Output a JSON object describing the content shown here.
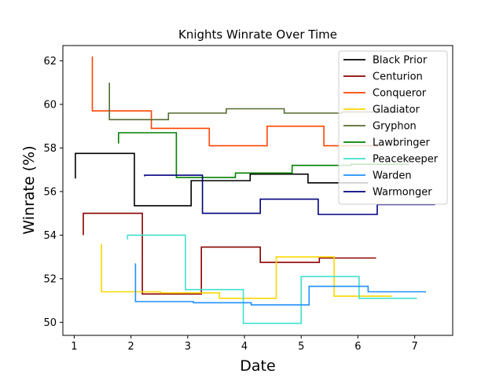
{
  "chart_data": {
    "type": "line",
    "step": true,
    "title": "Knights Winrate Over Time",
    "xlabel": "Date",
    "ylabel": "Winrate (%)",
    "xlim": [
      0.8,
      7.67
    ],
    "ylim": [
      49.4,
      62.7
    ],
    "xticks": [
      1,
      2,
      3,
      4,
      5,
      6,
      7
    ],
    "yticks": [
      50,
      52,
      54,
      56,
      58,
      60,
      62
    ],
    "grid": false,
    "legend_position": "top-right",
    "series": [
      {
        "name": "Black Prior",
        "color": "#000000",
        "x": [
          1.02,
          1.02,
          2.06,
          3.06,
          4.1,
          5.12,
          6.16
        ],
        "y": [
          56.6,
          57.75,
          55.35,
          56.5,
          56.8,
          56.4,
          56.35
        ]
      },
      {
        "name": "Centurion",
        "color": "#8b0000",
        "x": [
          1.16,
          1.16,
          2.2,
          3.24,
          4.28,
          5.32,
          6.32
        ],
        "y": [
          54.0,
          55.0,
          51.3,
          53.45,
          52.75,
          52.95,
          52.95
        ]
      },
      {
        "name": "Conqueror",
        "color": "#ff4500",
        "x": [
          1.32,
          1.32,
          2.36,
          3.38,
          4.4,
          5.4,
          6.4
        ],
        "y": [
          62.2,
          59.7,
          58.9,
          58.1,
          59.0,
          58.1,
          58.1
        ]
      },
      {
        "name": "Gladiator",
        "color": "#ffd700",
        "x": [
          1.48,
          1.48,
          2.52,
          3.56,
          4.56,
          5.58,
          6.6
        ],
        "y": [
          53.6,
          51.4,
          51.35,
          51.1,
          53.0,
          51.2,
          51.2
        ]
      },
      {
        "name": "Gryphon",
        "color": "#556b2f",
        "x": [
          1.62,
          1.62,
          2.66,
          3.68,
          4.7,
          5.72,
          6.72
        ],
        "y": [
          61.0,
          59.3,
          59.6,
          59.8,
          59.6,
          59.65,
          59.65
        ]
      },
      {
        "name": "Lawbringer",
        "color": "#008000",
        "x": [
          1.78,
          1.78,
          2.8,
          3.84,
          4.84,
          5.88,
          6.9
        ],
        "y": [
          58.2,
          58.7,
          56.65,
          56.85,
          57.2,
          57.25,
          57.25
        ]
      },
      {
        "name": "Peacekeeper",
        "color": "#40e0d0",
        "x": [
          1.94,
          1.94,
          2.96,
          3.98,
          5.0,
          6.02,
          7.04
        ],
        "y": [
          53.8,
          54.0,
          51.5,
          49.95,
          52.1,
          51.1,
          51.1
        ]
      },
      {
        "name": "Warden",
        "color": "#1e90ff",
        "x": [
          2.08,
          2.08,
          3.1,
          4.12,
          5.14,
          6.18,
          7.2
        ],
        "y": [
          52.7,
          50.95,
          50.9,
          50.8,
          51.65,
          51.4,
          51.4
        ]
      },
      {
        "name": "Warmonger",
        "color": "#000080",
        "x": [
          2.24,
          2.24,
          3.26,
          4.28,
          5.3,
          6.34,
          7.36
        ],
        "y": [
          56.7,
          56.75,
          55.0,
          55.65,
          54.95,
          55.4,
          55.4
        ]
      }
    ]
  }
}
